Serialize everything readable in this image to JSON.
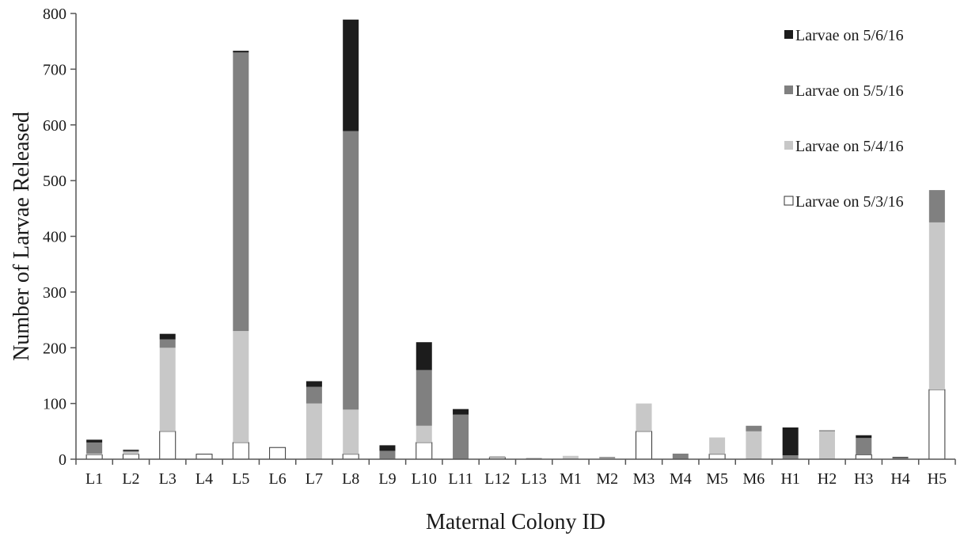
{
  "chart_data": {
    "type": "bar",
    "stacked": true,
    "xlabel": "Maternal Colony ID",
    "ylabel": "Number of Larvae Released",
    "ylim": [
      0,
      800
    ],
    "yticks": [
      0,
      100,
      200,
      300,
      400,
      500,
      600,
      700,
      800
    ],
    "grid": false,
    "legend_position": "top-right",
    "categories": [
      "L1",
      "L2",
      "L3",
      "L4",
      "L5",
      "L6",
      "L7",
      "L8",
      "L9",
      "L10",
      "L11",
      "L12",
      "L13",
      "M1",
      "M2",
      "M3",
      "M4",
      "M5",
      "M6",
      "H1",
      "H2",
      "H3",
      "H4",
      "H5"
    ],
    "series": [
      {
        "name": "Larvae on 5/3/16",
        "color": "#ffffff",
        "values": [
          8,
          9,
          50,
          9,
          30,
          21,
          0,
          9,
          0,
          30,
          0,
          3,
          0,
          0,
          0,
          50,
          0,
          9,
          0,
          0,
          0,
          8,
          0,
          125
        ]
      },
      {
        "name": "Larvae on 5/4/16",
        "color": "#c8c8c8",
        "values": [
          2,
          4,
          150,
          0,
          200,
          0,
          100,
          80,
          0,
          30,
          0,
          1,
          1,
          6,
          2,
          50,
          0,
          30,
          50,
          0,
          50,
          0,
          0,
          300
        ]
      },
      {
        "name": "Larvae on 5/5/16",
        "color": "#808080",
        "values": [
          20,
          2,
          15,
          0,
          500,
          0,
          30,
          500,
          15,
          100,
          80,
          1,
          1,
          0,
          2,
          0,
          10,
          0,
          10,
          7,
          2,
          30,
          3,
          58
        ]
      },
      {
        "name": "Larvae on 5/6/16",
        "color": "#1c1c1c",
        "values": [
          5,
          2,
          10,
          0,
          3,
          0,
          10,
          200,
          10,
          50,
          10,
          0,
          0,
          0,
          0,
          0,
          0,
          0,
          0,
          50,
          0,
          5,
          1,
          0
        ]
      }
    ]
  }
}
